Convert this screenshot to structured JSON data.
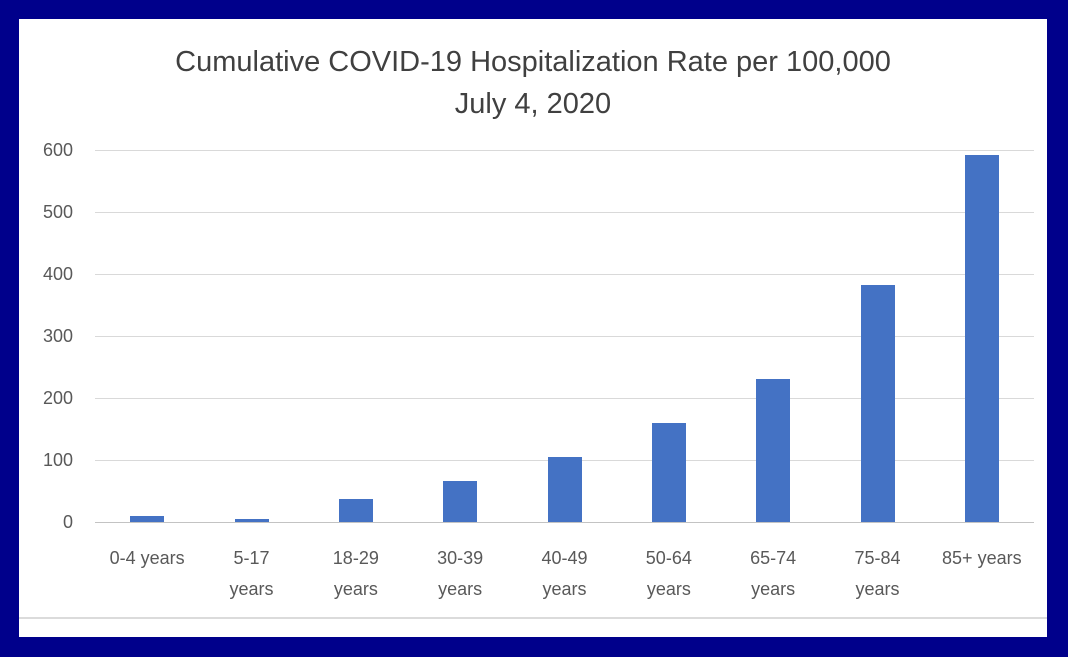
{
  "frame": {
    "border_color": "#00008B",
    "background_color": "#FFFFFF"
  },
  "chart_data": {
    "type": "bar",
    "title": "Cumulative COVID-19 Hospitalization Rate per 100,000",
    "subtitle": "July 4, 2020",
    "categories": [
      "0-4 years",
      "5-17 years",
      "18-29 years",
      "30-39 years",
      "40-49 years",
      "50-64 years",
      "65-74 years",
      "75-84 years",
      "85+ years"
    ],
    "category_label_lines": [
      [
        "0-4 years"
      ],
      [
        "5-17",
        "years"
      ],
      [
        "18-29",
        "years"
      ],
      [
        "30-39",
        "years"
      ],
      [
        "40-49",
        "years"
      ],
      [
        "50-64",
        "years"
      ],
      [
        "65-74",
        "years"
      ],
      [
        "75-84",
        "years"
      ],
      [
        "85+ years"
      ]
    ],
    "values": [
      10,
      5,
      37,
      66,
      105,
      160,
      230,
      382,
      592
    ],
    "xlabel": "",
    "ylabel": "",
    "ylim": [
      0,
      600
    ],
    "yticks": [
      0,
      100,
      200,
      300,
      400,
      500,
      600
    ],
    "grid": true,
    "legend": false,
    "bar_color": "#4472C4",
    "gridline_color": "#D9D9D9",
    "axis_line_color": "#C3C3C3",
    "tick_text_color": "#595959",
    "title_text_color": "#404040"
  }
}
